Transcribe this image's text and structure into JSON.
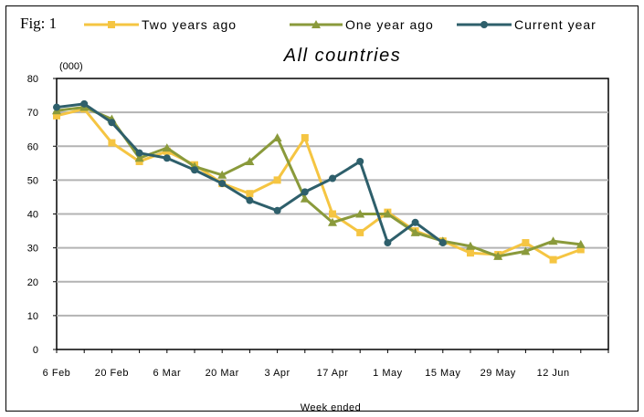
{
  "figure_label": "Fig: 1",
  "chart_data": {
    "type": "line",
    "title": "All countries",
    "unit_label": "(000)",
    "xlabel": "Week ended",
    "ylabel": "",
    "ylim": [
      0,
      80
    ],
    "yticks": [
      0,
      10,
      20,
      30,
      40,
      50,
      60,
      70,
      80
    ],
    "x_tick_labels": [
      "6 Feb",
      "20 Feb",
      "6 Mar",
      "20 Mar",
      "3 Apr",
      "17 Apr",
      "1 May",
      "15 May",
      "29 May",
      "12 Jun"
    ],
    "grid": true,
    "legend": "top",
    "series": [
      {
        "name": "Two years ago",
        "color": "#f5c542",
        "marker": "square",
        "values": [
          69,
          71,
          61,
          55.5,
          58.5,
          54.5,
          49,
          46,
          50,
          62.5,
          40,
          34.5,
          40.5,
          35,
          32,
          28.5,
          28,
          31.5,
          26.5,
          29.5
        ]
      },
      {
        "name": "One year ago",
        "color": "#8a9a3b",
        "marker": "triangle",
        "values": [
          70.5,
          71.5,
          68,
          56.5,
          59.5,
          54,
          51.5,
          55.5,
          62.5,
          44.5,
          37.5,
          40,
          40,
          34.5,
          32,
          30.5,
          27.5,
          29,
          32,
          31
        ]
      },
      {
        "name": "Current year",
        "color": "#2e5f6b",
        "marker": "circle",
        "values": [
          71.5,
          72.5,
          67,
          58,
          56.5,
          53,
          49,
          44,
          41,
          46.5,
          50.5,
          55.5,
          31.5,
          37.5,
          31.5,
          null,
          null,
          null,
          null,
          null
        ]
      }
    ]
  }
}
